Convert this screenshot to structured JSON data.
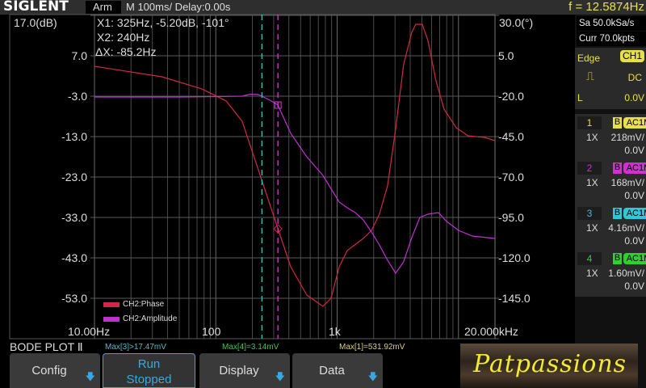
{
  "header": {
    "logo": "SIGLENT",
    "status": "Arm",
    "timebase": "M 100ms/  Delay:0.00s",
    "trigger_freq": "f = 12.5874Hz"
  },
  "cursors": {
    "x1": "X1: 325Hz, -5.20dB, -101°",
    "x2": "X2: 240Hz",
    "dx": "ΔX: -85.2Hz",
    "x1_freq_hz": 325,
    "x2_freq_hz": 240,
    "x1_color": "#d040d0",
    "x2_color": "#40c0c0"
  },
  "right_panel": {
    "sample_rate": "Sa 50.0kSa/s",
    "memory": "Curr 70.0kpts",
    "trigger": {
      "type": "Edge",
      "source": "CH1",
      "slope_icon": "rising-edge-icon",
      "coupling": "DC",
      "level_label": "L",
      "level": "0.0V"
    },
    "channels": [
      {
        "num": "1",
        "bw": "B",
        "coupling": "AC1M",
        "probe": "1X",
        "scale": "218mV/",
        "offset": "0.0V",
        "color": "#e8e04a"
      },
      {
        "num": "2",
        "bw": "B",
        "coupling": "AC1M",
        "probe": "1X",
        "scale": "168mV/",
        "offset": "0.0V",
        "color": "#d030d0"
      },
      {
        "num": "3",
        "bw": "B",
        "coupling": "AC1M",
        "probe": "1X",
        "scale": "4.16mV/",
        "offset": "0.0V",
        "color": "#30c8d8"
      },
      {
        "num": "4",
        "bw": "B",
        "coupling": "AC1M",
        "probe": "1X",
        "scale": "1.60mV/",
        "offset": "0.0V",
        "color": "#30d030"
      }
    ]
  },
  "bottom": {
    "title": "BODE PLOT Ⅱ",
    "max3": "Max[3]>17.47mV",
    "max4": "Max[4]=3.14mV",
    "max1": "Max[1]=531.92mV",
    "max3_color": "#5ab8c8",
    "max4_color": "#50c050",
    "max1_color": "#d8d080",
    "buttons": {
      "config": "Config",
      "run": "Run",
      "run_state": "Stopped",
      "display": "Display",
      "data": "Data"
    },
    "brand": "Patpassions"
  },
  "chart_data": {
    "type": "line",
    "xscale": "log",
    "xlim": [
      10,
      20000
    ],
    "x_tick_labels": [
      "10.00Hz",
      "100",
      "1k",
      "20.000kHz"
    ],
    "left_axis": {
      "unit_label": "17.0(dB)",
      "ticks": [
        "7.0",
        "-3.0",
        "-13.0",
        "-23.0",
        "-33.0",
        "-43.0",
        "-53.0"
      ],
      "ylim": [
        -63,
        17
      ]
    },
    "right_axis": {
      "unit_label": "30.0(°)",
      "ticks": [
        "5.0",
        "-20.0",
        "-45.0",
        "-70.0",
        "-95.0",
        "-120.0",
        "-145.0"
      ],
      "ylim": [
        -170,
        30
      ]
    },
    "grid": true,
    "legend": "bottom-left",
    "series": [
      {
        "name": "CH2:Phase",
        "axis": "right",
        "color": "#d02848",
        "x": [
          10,
          36,
          77,
          122,
          165,
          224,
          325,
          414,
          562,
          764,
          890,
          1040,
          1210,
          1640,
          1920,
          2230,
          2600,
          3030,
          3530,
          4120,
          4450,
          5030,
          5600,
          6520,
          7600,
          9570,
          12030,
          16370,
          20000
        ],
        "y": [
          -1.5,
          -8,
          -15.5,
          -23,
          -35.5,
          -65.5,
          -102,
          -125.5,
          -143,
          -150,
          -145,
          -125.5,
          -115.5,
          -108,
          -103,
          -93,
          -75.5,
          -40.5,
          -0.5,
          19.5,
          24.5,
          24.5,
          14.5,
          -10.5,
          -28,
          -39.5,
          -44.5,
          -45.5,
          -47.5
        ]
      },
      {
        "name": "CH2:Amplitude",
        "axis": "left",
        "color": "#c030d0",
        "x": [
          10,
          50,
          100,
          165,
          192,
          224,
          280,
          325,
          414,
          562,
          764,
          1040,
          1210,
          1410,
          1640,
          1920,
          2230,
          2600,
          3030,
          3530,
          4120,
          4800,
          5600,
          6830,
          8000,
          10000,
          13000,
          20000
        ],
        "y": [
          -3.2,
          -3.2,
          -3.1,
          -3.0,
          -2.5,
          -2.6,
          -4.0,
          -5.2,
          -12.2,
          -18,
          -22.6,
          -29.2,
          -30.6,
          -31.8,
          -33.6,
          -36.6,
          -39.8,
          -43.6,
          -46.8,
          -44,
          -38,
          -33,
          -32.2,
          -31.8,
          -34,
          -36.2,
          -37.6,
          -38.2
        ]
      }
    ]
  }
}
